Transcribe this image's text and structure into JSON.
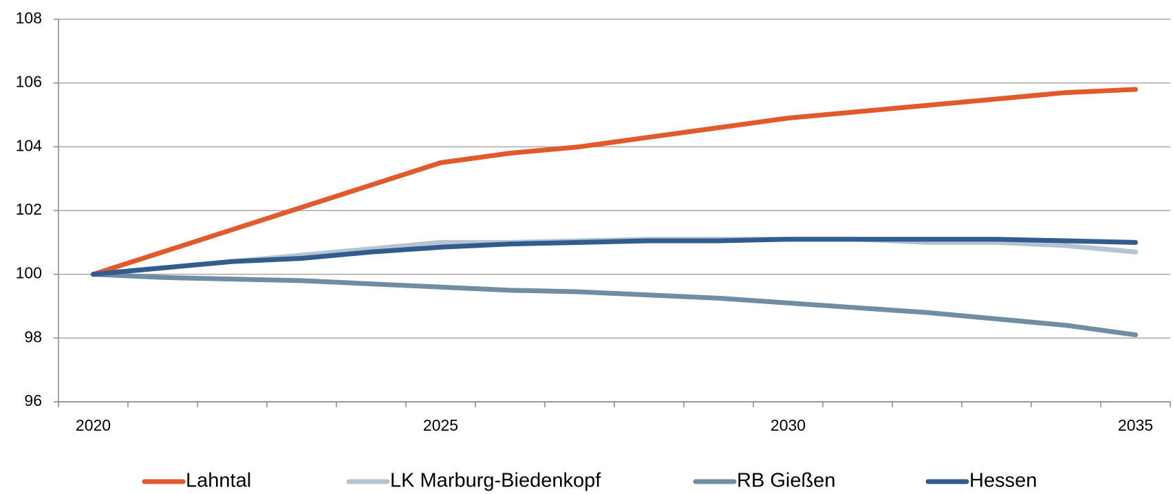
{
  "chart_data": {
    "type": "line",
    "categories": [
      "2020",
      null,
      null,
      null,
      null,
      "2025",
      null,
      null,
      null,
      null,
      "2030",
      null,
      null,
      null,
      null,
      "2035"
    ],
    "series": [
      {
        "name": "Lahntal",
        "color": "#e05a2b",
        "values": [
          100,
          100.7,
          101.4,
          102.1,
          102.8,
          103.5,
          103.8,
          104.0,
          104.3,
          104.6,
          104.9,
          105.1,
          105.3,
          105.5,
          105.7,
          105.8
        ]
      },
      {
        "name": "LK Marburg-Biedenkopf",
        "color": "#b4c4d3",
        "values": [
          100,
          100.2,
          100.4,
          100.6,
          100.8,
          101.0,
          101.0,
          101.05,
          101.1,
          101.1,
          101.1,
          101.1,
          101.0,
          101.0,
          100.9,
          100.7
        ]
      },
      {
        "name": "RB Gießen",
        "color": "#6f8ea3",
        "values": [
          100,
          99.9,
          99.85,
          99.8,
          99.7,
          99.6,
          99.5,
          99.45,
          99.35,
          99.25,
          99.1,
          98.95,
          98.8,
          98.6,
          98.4,
          98.1
        ]
      },
      {
        "name": "Hessen",
        "color": "#335c8e",
        "values": [
          100,
          100.2,
          100.4,
          100.5,
          100.7,
          100.85,
          100.95,
          101.0,
          101.05,
          101.05,
          101.1,
          101.1,
          101.1,
          101.1,
          101.05,
          101.0
        ]
      }
    ],
    "ylim": [
      96,
      108
    ],
    "yticks": [
      96,
      98,
      100,
      102,
      104,
      106,
      108
    ],
    "grid": true
  }
}
